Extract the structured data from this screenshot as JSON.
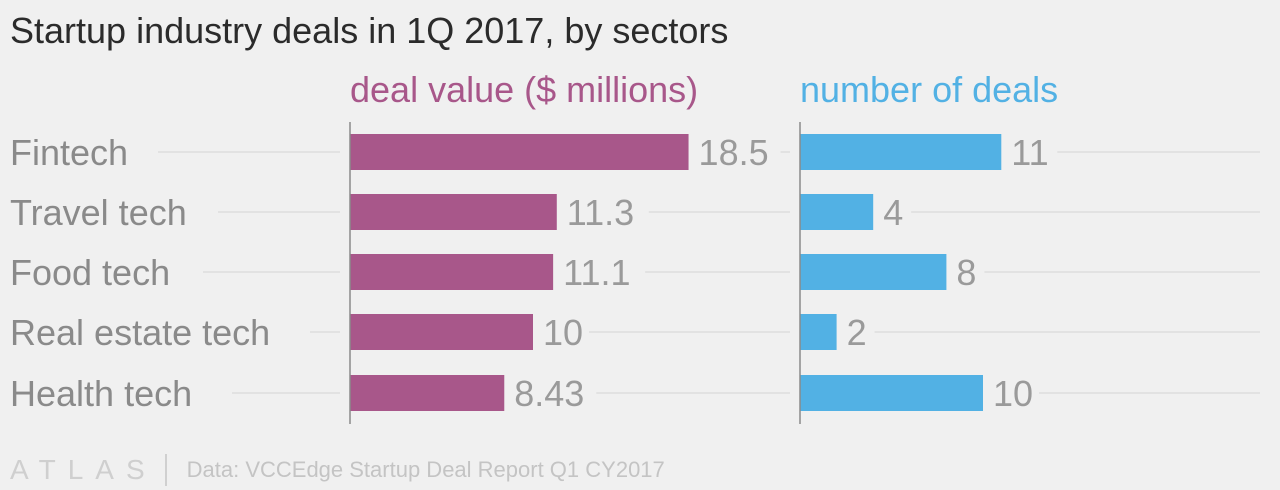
{
  "title": "Startup industry deals in 1Q 2017, by sectors",
  "footer": {
    "logo": "ATLAS",
    "source": "Data: VCCEdge Startup Deal Report Q1 CY2017"
  },
  "colors": {
    "deal_value": "#a8578a",
    "number_of_deals": "#52b1e4",
    "category_text": "#8a8a8a",
    "value_text": "#9a9a9a",
    "gridline": "#e2e2e2",
    "axis": "#8a8a8a"
  },
  "chart_data": [
    {
      "type": "bar",
      "orientation": "horizontal",
      "title": "deal value ($ millions)",
      "categories": [
        "Fintech",
        "Travel tech",
        "Food tech",
        "Real estate tech",
        "Health tech"
      ],
      "values": [
        18.5,
        11.3,
        11.1,
        10,
        8.43
      ],
      "value_labels": [
        "18.5",
        "11.3",
        "11.1",
        "10",
        "8.43"
      ],
      "xlim": [
        0,
        25
      ],
      "grid": true
    },
    {
      "type": "bar",
      "orientation": "horizontal",
      "title": "number of deals",
      "categories": [
        "Fintech",
        "Travel tech",
        "Food tech",
        "Real estate tech",
        "Health tech"
      ],
      "values": [
        11,
        4,
        8,
        2,
        10
      ],
      "value_labels": [
        "11",
        "4",
        "8",
        "2",
        "10"
      ],
      "xlim": [
        0,
        15
      ],
      "grid": true
    }
  ]
}
